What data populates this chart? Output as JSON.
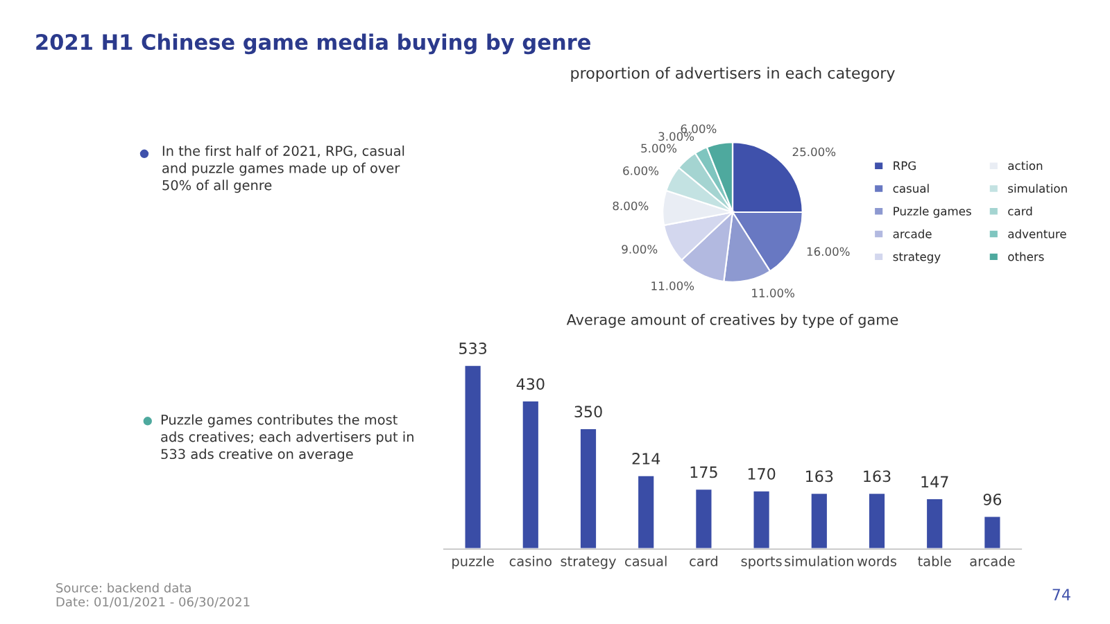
{
  "chart_data": [
    {
      "type": "other",
      "title": "2021 H1 Chinese game media buying by genre",
      "annotations": [
        "In the first half of 2021, RPG, casual\nand puzzle games made up of over\n50% of all genre"
      ]
    },
    {
      "type": "pie",
      "title": "proportion of advertisers in each category",
      "categories": [
        "RPG",
        "casual",
        "Puzzle games",
        "arcade",
        "strategy",
        "action",
        "simulation",
        "card",
        "adventure",
        "others"
      ],
      "values": [
        25,
        16,
        11,
        11,
        9,
        8,
        6,
        5,
        3,
        6
      ],
      "value_labels": [
        "25.00%",
        "16.00%",
        "11.00%",
        "11.00%",
        "9.00%",
        "8.00%",
        "6.00%",
        "5.00%",
        "3.00%",
        "6.00%"
      ],
      "colors": [
        "#3f51ab",
        "#6878c2",
        "#8d99d0",
        "#b2b9e0",
        "#d3d7ee",
        "#e9edf4",
        "#c3e2e2",
        "#a4d4d1",
        "#7fc5bf",
        "#4ea99e"
      ],
      "legend": "right"
    },
    {
      "type": "other",
      "annotations": [
        "Puzzle games contributes the most\nads creatives; each advertisers put in\n533 ads creative on average"
      ]
    },
    {
      "type": "bar",
      "title": "Average amount of creatives by type of game",
      "categories": [
        "puzzle",
        "casino",
        "strategy",
        "casual",
        "card",
        "sports",
        "simulation",
        "words",
        "table",
        "arcade"
      ],
      "values": [
        533,
        430,
        350,
        214,
        175,
        170,
        163,
        163,
        147,
        96
      ],
      "color": "#3a4da6",
      "data_labels": true
    },
    {
      "type": "other",
      "annotations": [
        "Source: backend data\nDate: 01/01/2021 - 06/30/2021",
        "74"
      ]
    }
  ]
}
